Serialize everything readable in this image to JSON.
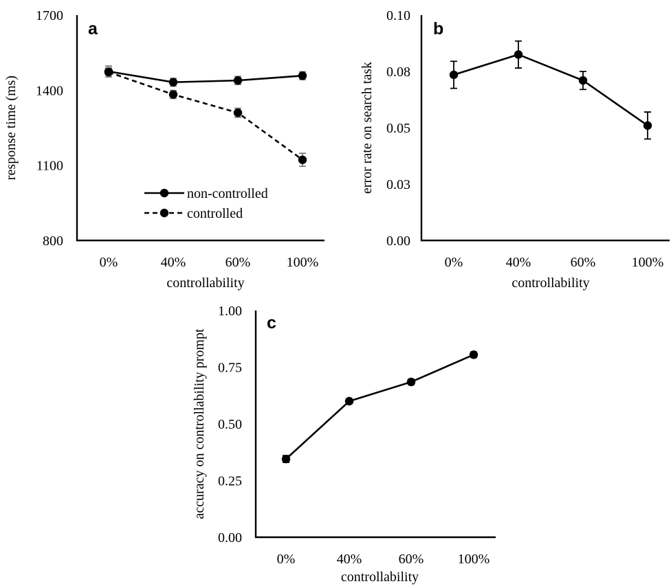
{
  "chart_data": [
    {
      "panel": "a",
      "type": "line",
      "categories": [
        "0%",
        "40%",
        "60%",
        "100%"
      ],
      "xlabel": "controllability",
      "ylabel": "response time (ms)",
      "ylim": [
        800,
        1700
      ],
      "yticks": [
        "800",
        "1100",
        "1400",
        "1700"
      ],
      "series": [
        {
          "name": "non-controlled",
          "style": "solid",
          "values": [
            1475,
            1432,
            1439,
            1458
          ],
          "errors": [
            22,
            16,
            16,
            16
          ],
          "error_color": "#808080"
        },
        {
          "name": "controlled",
          "style": "dashed",
          "values": [
            1472,
            1383,
            1310,
            1122
          ],
          "errors": [
            18,
            16,
            18,
            26
          ],
          "error_color": "#808080"
        }
      ],
      "legend": "center-inside"
    },
    {
      "panel": "b",
      "type": "line",
      "categories": [
        "0%",
        "40%",
        "60%",
        "100%"
      ],
      "xlabel": "controllability",
      "ylabel": "error rate on search task",
      "ylim": [
        0,
        0.1
      ],
      "yticks": [
        "0.00",
        "0.03",
        "0.05",
        "0.08",
        "0.10"
      ],
      "series": [
        {
          "style": "solid",
          "values": [
            0.0735,
            0.0825,
            0.071,
            0.051
          ],
          "errors": [
            0.006,
            0.006,
            0.004,
            0.006
          ],
          "error_color": "#000000"
        }
      ]
    },
    {
      "panel": "c",
      "type": "line",
      "categories": [
        "0%",
        "40%",
        "60%",
        "100%"
      ],
      "xlabel": "controllability",
      "ylabel": "accuracy on controllability prompt",
      "ylim": [
        0,
        1
      ],
      "yticks": [
        "0.00",
        "0.25",
        "0.50",
        "0.75",
        "1.00"
      ],
      "series": [
        {
          "style": "solid",
          "values": [
            0.345,
            0.6,
            0.685,
            0.805
          ],
          "errors": [
            0.015,
            0.01,
            0.012,
            0.012
          ],
          "error_color": "#000000"
        }
      ]
    }
  ]
}
